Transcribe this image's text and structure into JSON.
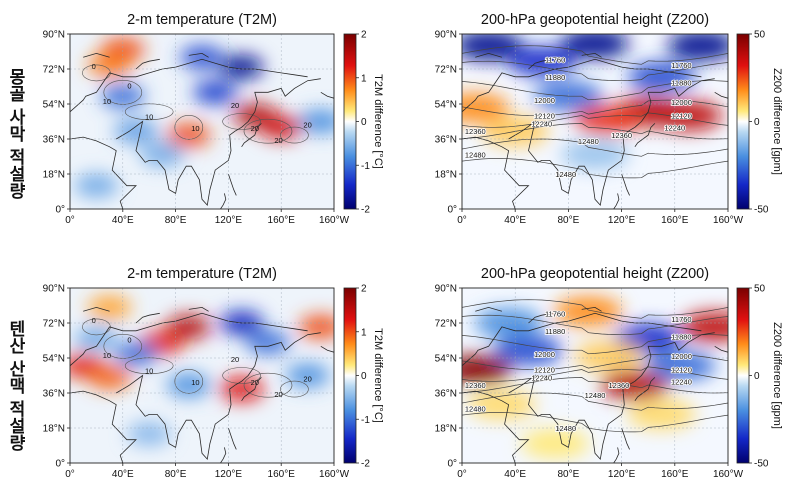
{
  "figure": {
    "row_labels": [
      "몽골 사막 적설량",
      "텐산 산맥 적설량"
    ]
  },
  "chart_data": [
    {
      "type": "heatmap",
      "title": "2-m temperature (T2M)",
      "row": "몽골 사막 적설량",
      "xticks": [
        "0°",
        "40°E",
        "80°E",
        "120°E",
        "160°E",
        "160°W"
      ],
      "yticks": [
        "0°",
        "18°N",
        "36°N",
        "54°N",
        "72°N",
        "90°N"
      ],
      "colorbar": {
        "label": "T2M difference [°C]",
        "ticks": [
          "2",
          "1",
          "0",
          "-1",
          "-2"
        ],
        "range": [
          -2,
          2
        ]
      },
      "contour_labels": [
        "0",
        "0",
        "10",
        "10",
        "10",
        "20",
        "20",
        "20",
        "20"
      ],
      "anomalies": [
        {
          "lon": 40,
          "lat": 82,
          "value": 1.0
        },
        {
          "lon": 30,
          "lat": 74,
          "value": 0.8
        },
        {
          "lon": 100,
          "lat": 78,
          "value": -1.2
        },
        {
          "lon": 130,
          "lat": 73,
          "value": -1.8
        },
        {
          "lon": 110,
          "lat": 60,
          "value": -1.3
        },
        {
          "lon": 40,
          "lat": 58,
          "value": -1.0
        },
        {
          "lon": 140,
          "lat": 48,
          "value": 1.6
        },
        {
          "lon": 160,
          "lat": 42,
          "value": 1.4
        },
        {
          "lon": 90,
          "lat": 38,
          "value": 1.0
        },
        {
          "lon": 50,
          "lat": 40,
          "value": -0.7
        },
        {
          "lon": 70,
          "lat": 28,
          "value": -0.6
        },
        {
          "lon": 190,
          "lat": 45,
          "value": -0.8
        },
        {
          "lon": 20,
          "lat": 12,
          "value": -0.6
        }
      ]
    },
    {
      "type": "heatmap",
      "title": "200-hPa geopotential height (Z200)",
      "row": "몽골 사막 적설량",
      "xticks": [
        "0°",
        "40°E",
        "80°E",
        "120°E",
        "160°E",
        "160°W"
      ],
      "yticks": [
        "0°",
        "18°N",
        "36°N",
        "54°N",
        "72°N",
        "90°N"
      ],
      "colorbar": {
        "label": "Z200 difference [gpm]",
        "ticks": [
          "50",
          "0",
          "-50"
        ],
        "range": [
          -50,
          50
        ]
      },
      "contour_labels": [
        {
          "text": "11760",
          "lon": 70,
          "lat": 77
        },
        {
          "text": "11760",
          "lon": 165,
          "lat": 74
        },
        {
          "text": "11880",
          "lon": 70,
          "lat": 68
        },
        {
          "text": "11880",
          "lon": 165,
          "lat": 65
        },
        {
          "text": "12000",
          "lon": 62,
          "lat": 56
        },
        {
          "text": "12000",
          "lon": 165,
          "lat": 55
        },
        {
          "text": "12120",
          "lon": 62,
          "lat": 48
        },
        {
          "text": "12120",
          "lon": 165,
          "lat": 48
        },
        {
          "text": "12240",
          "lon": 60,
          "lat": 44
        },
        {
          "text": "12240",
          "lon": 160,
          "lat": 42
        },
        {
          "text": "12360",
          "lon": 10,
          "lat": 40
        },
        {
          "text": "12360",
          "lon": 120,
          "lat": 38
        },
        {
          "text": "12480",
          "lon": 10,
          "lat": 28
        },
        {
          "text": "12480",
          "lon": 95,
          "lat": 35
        },
        {
          "text": "12480",
          "lon": 78,
          "lat": 18
        }
      ],
      "anomalies": [
        {
          "lon": 100,
          "lat": 85,
          "value": -45
        },
        {
          "lon": 20,
          "lat": 84,
          "value": -45
        },
        {
          "lon": 180,
          "lat": 84,
          "value": -45
        },
        {
          "lon": 60,
          "lat": 76,
          "value": -35
        },
        {
          "lon": 150,
          "lat": 68,
          "value": -30
        },
        {
          "lon": 140,
          "lat": 50,
          "value": 40
        },
        {
          "lon": 170,
          "lat": 48,
          "value": 38
        },
        {
          "lon": 110,
          "lat": 46,
          "value": 28
        },
        {
          "lon": 10,
          "lat": 52,
          "value": 18
        },
        {
          "lon": 80,
          "lat": 58,
          "value": -25
        },
        {
          "lon": 40,
          "lat": 40,
          "value": 10
        },
        {
          "lon": 100,
          "lat": 28,
          "value": -10
        }
      ]
    },
    {
      "type": "heatmap",
      "title": "2-m temperature (T2M)",
      "row": "텐산 산맥 적설량",
      "xticks": [
        "0°",
        "40°E",
        "80°E",
        "120°E",
        "160°E",
        "160°W"
      ],
      "yticks": [
        "0°",
        "18°N",
        "36°N",
        "54°N",
        "72°N",
        "90°N"
      ],
      "colorbar": {
        "label": "T2M difference [°C]",
        "ticks": [
          "2",
          "1",
          "0",
          "-1",
          "-2"
        ],
        "range": [
          -2,
          2
        ]
      },
      "contour_labels": [
        "0",
        "0",
        "10",
        "10",
        "10",
        "20",
        "20",
        "20",
        "20"
      ],
      "anomalies": [
        {
          "lon": 90,
          "lat": 70,
          "value": 1.6
        },
        {
          "lon": 70,
          "lat": 62,
          "value": 1.2
        },
        {
          "lon": 130,
          "lat": 72,
          "value": -1.5
        },
        {
          "lon": 150,
          "lat": 62,
          "value": -1.0
        },
        {
          "lon": 10,
          "lat": 50,
          "value": 1.2
        },
        {
          "lon": 30,
          "lat": 44,
          "value": 0.9
        },
        {
          "lon": 50,
          "lat": 56,
          "value": -1.0
        },
        {
          "lon": 20,
          "lat": 64,
          "value": -0.6
        },
        {
          "lon": 90,
          "lat": 40,
          "value": -0.8
        },
        {
          "lon": 130,
          "lat": 38,
          "value": 1.3
        },
        {
          "lon": 190,
          "lat": 70,
          "value": 1.0
        },
        {
          "lon": 180,
          "lat": 45,
          "value": -0.8
        },
        {
          "lon": 60,
          "lat": 15,
          "value": -0.5
        },
        {
          "lon": 30,
          "lat": 80,
          "value": 0.6
        }
      ]
    },
    {
      "type": "heatmap",
      "title": "200-hPa geopotential height (Z200)",
      "row": "텐산 산맥 적설량",
      "xticks": [
        "0°",
        "40°E",
        "80°E",
        "120°E",
        "160°E",
        "160°W"
      ],
      "yticks": [
        "0°",
        "18°N",
        "36°N",
        "54°N",
        "72°N",
        "90°N"
      ],
      "colorbar": {
        "label": "Z200 difference [gpm]",
        "ticks": [
          "50",
          "0",
          "-50"
        ],
        "range": [
          -50,
          50
        ]
      },
      "contour_labels": [
        {
          "text": "11760",
          "lon": 70,
          "lat": 77
        },
        {
          "text": "11760",
          "lon": 165,
          "lat": 74
        },
        {
          "text": "11880",
          "lon": 70,
          "lat": 68
        },
        {
          "text": "11880",
          "lon": 165,
          "lat": 65
        },
        {
          "text": "12000",
          "lon": 62,
          "lat": 56
        },
        {
          "text": "12000",
          "lon": 165,
          "lat": 55
        },
        {
          "text": "12120",
          "lon": 62,
          "lat": 48
        },
        {
          "text": "12120",
          "lon": 165,
          "lat": 48
        },
        {
          "text": "12240",
          "lon": 60,
          "lat": 44
        },
        {
          "text": "12240",
          "lon": 165,
          "lat": 42
        },
        {
          "text": "12360",
          "lon": 10,
          "lat": 40
        },
        {
          "text": "12360",
          "lon": 118,
          "lat": 40
        },
        {
          "text": "12480",
          "lon": 10,
          "lat": 28
        },
        {
          "text": "12480",
          "lon": 100,
          "lat": 35
        },
        {
          "text": "12480",
          "lon": 78,
          "lat": 18
        }
      ],
      "anomalies": [
        {
          "lon": 12,
          "lat": 48,
          "value": 48
        },
        {
          "lon": 130,
          "lat": 40,
          "value": 40
        },
        {
          "lon": 190,
          "lat": 70,
          "value": 38
        },
        {
          "lon": 50,
          "lat": 58,
          "value": -30
        },
        {
          "lon": 35,
          "lat": 72,
          "value": -20
        },
        {
          "lon": 140,
          "lat": 64,
          "value": -35
        },
        {
          "lon": 165,
          "lat": 50,
          "value": -25
        },
        {
          "lon": 95,
          "lat": 78,
          "value": 18
        },
        {
          "lon": 110,
          "lat": 55,
          "value": 10
        },
        {
          "lon": 30,
          "lat": 30,
          "value": 8
        },
        {
          "lon": 70,
          "lat": 10,
          "value": 6
        },
        {
          "lon": 150,
          "lat": 25,
          "value": 8
        }
      ]
    }
  ]
}
